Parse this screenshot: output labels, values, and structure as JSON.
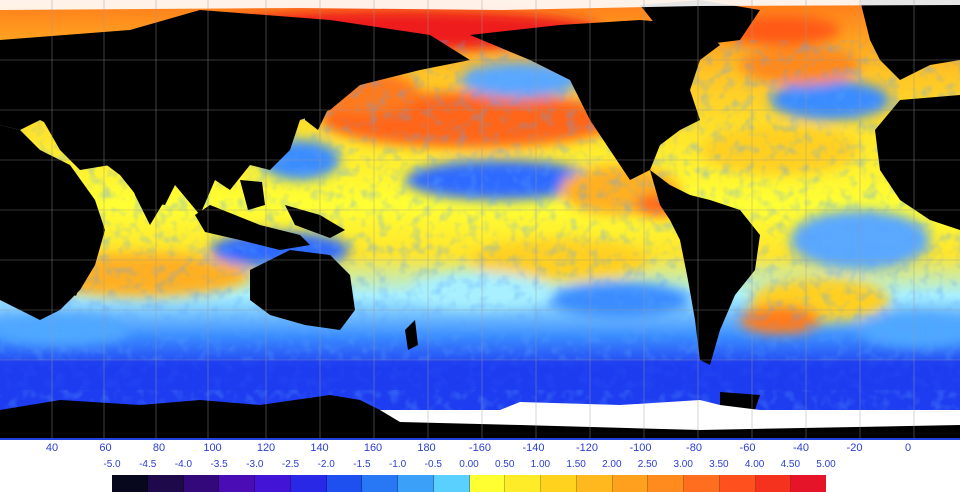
{
  "map": {
    "ocean_colors": {
      "deep_blue": "#1a33e6",
      "blue": "#2f6bff",
      "light_blue": "#4fa8ff",
      "cyan": "#5bd8ff",
      "yellow": "#ffff2e",
      "gold": "#ffd020",
      "orange": "#ff9a1a",
      "red_orange": "#ff5a14",
      "red": "#ee1a1a",
      "land": "#000000",
      "ice": "#ffffff",
      "grid": "#9a9a9a",
      "frame": "#2040e0"
    },
    "longitude_labels": [
      "40",
      "60",
      "80",
      "100",
      "120",
      "140",
      "160",
      "180",
      "-160",
      "-140",
      "-120",
      "-100",
      "-80",
      "-60",
      "-40",
      "-20",
      "0"
    ]
  },
  "legend": {
    "scale_labels": [
      "-5.0",
      "-4.5",
      "-4.0",
      "-3.5",
      "-3.0",
      "-2.5",
      "-2.0",
      "-1.5",
      "-1.0",
      "-0.5",
      "0.00",
      "0.50",
      "1.00",
      "1.50",
      "2.00",
      "2.50",
      "3.00",
      "3.50",
      "4.00",
      "4.50",
      "5.00"
    ],
    "colors": [
      "#07071e",
      "#1e0a4a",
      "#32087a",
      "#4a0cb4",
      "#4214d6",
      "#2828e6",
      "#1e50f0",
      "#2878f5",
      "#3aa0f8",
      "#5ad0ff",
      "#ffff32",
      "#ffec28",
      "#ffd21e",
      "#ffb91e",
      "#ffa01e",
      "#ff8a1e",
      "#ff6e1e",
      "#ff501e",
      "#f5321e",
      "#e61428"
    ]
  }
}
